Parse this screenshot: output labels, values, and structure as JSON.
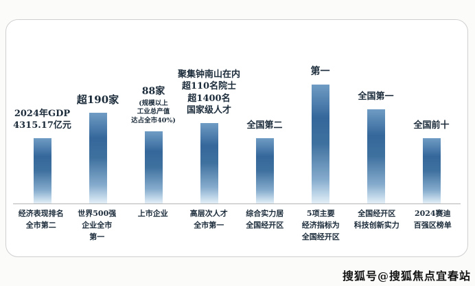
{
  "watermark": {
    "text": "搜狐号@搜狐焦点宜春站"
  },
  "chart_data": {
    "type": "bar",
    "title": "",
    "xlabel": "",
    "ylabel": "",
    "axis_note": "no numeric value axis shown; bar heights convey relative emphasis only",
    "legend": "none",
    "grid": false,
    "bar_gradient": [
      "#35679b",
      "#e4eff7"
    ],
    "text_color": "#1b2b3a",
    "categories": [
      "经济表现排名 全市第二",
      "世界500强 企业全市 第一",
      "上市企业",
      "高层次人才 全市第一",
      "综合实力居 全国经开区",
      "5项主要 经济指标为 全国经开区",
      "全国经开区 科技创新实力",
      "2024赛迪 百强区榜单"
    ],
    "values": [
      95,
      132,
      105,
      117,
      95,
      173,
      137,
      95
    ],
    "annotations": [
      "2024年GDP 4315.17亿元",
      "超190家",
      "88家 (规模以上 工业总产值 达占全市40%)",
      "聚集钟南山在内 超110名院士 超1400名 国家级人才",
      "全国第二",
      "第一",
      "全国第一",
      "全国前十"
    ],
    "columns": [
      {
        "annotation_lines": [
          "2024年GDP",
          "4315.17亿元"
        ],
        "annotation_size": 13,
        "annotation_small_lines": [],
        "value": 95,
        "label_lines": [
          "经济表现排名",
          "全市第二"
        ]
      },
      {
        "annotation_lines": [
          "超190家"
        ],
        "annotation_size": 15,
        "annotation_small_lines": [],
        "value": 132,
        "label_lines": [
          "世界500强",
          "企业全市",
          "第一"
        ]
      },
      {
        "annotation_lines": [
          "88家"
        ],
        "annotation_size": 14,
        "annotation_small_lines": [
          "(规模以上",
          "工业总产值",
          "达占全市40%)"
        ],
        "value": 105,
        "label_lines": [
          "上市企业"
        ]
      },
      {
        "annotation_lines": [
          "聚集钟南山在内",
          "超110名院士",
          "超1400名",
          "国家级人才"
        ],
        "annotation_size": 13,
        "annotation_small_lines": [],
        "value": 117,
        "label_lines": [
          "高层次人才",
          "全市第一"
        ]
      },
      {
        "annotation_lines": [
          "全国第二"
        ],
        "annotation_size": 13,
        "annotation_small_lines": [],
        "value": 95,
        "label_lines": [
          "综合实力居",
          "全国经开区"
        ]
      },
      {
        "annotation_lines": [
          "第一"
        ],
        "annotation_size": 14,
        "annotation_small_lines": [],
        "value": 173,
        "label_lines": [
          "5项主要",
          "经济指标为",
          "全国经开区"
        ]
      },
      {
        "annotation_lines": [
          "全国第一"
        ],
        "annotation_size": 13,
        "annotation_small_lines": [],
        "value": 137,
        "label_lines": [
          "全国经开区",
          "科技创新实力"
        ]
      },
      {
        "annotation_lines": [
          "全国前十"
        ],
        "annotation_size": 13,
        "annotation_small_lines": [],
        "value": 95,
        "label_lines": [
          "2024赛迪",
          "百强区榜单"
        ]
      }
    ]
  }
}
